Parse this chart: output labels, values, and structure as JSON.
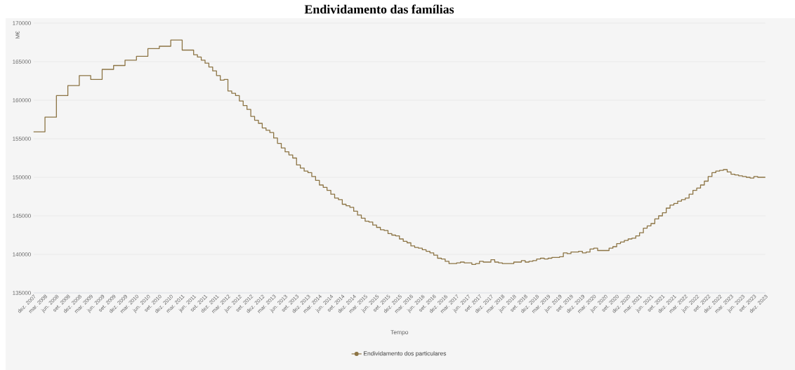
{
  "chart_data": {
    "type": "step",
    "title": "Endividamento das famílias",
    "xlabel": "Tempo",
    "ylabel": "M€",
    "x": [
      "2007-12",
      "2008-03",
      "2008-06",
      "2008-09",
      "2008-12",
      "2009-03",
      "2009-06",
      "2009-09",
      "2009-12",
      "2010-03",
      "2010-06",
      "2010-09",
      "2010-12",
      "2011-03",
      "2011-06",
      "2011-07",
      "2011-08",
      "2011-09",
      "2011-10",
      "2011-11",
      "2011-12",
      "2012-01",
      "2012-02",
      "2012-03",
      "2012-04",
      "2012-05",
      "2012-06",
      "2012-07",
      "2012-08",
      "2012-09",
      "2012-10",
      "2012-11",
      "2012-12",
      "2013-01",
      "2013-02",
      "2013-03",
      "2013-04",
      "2013-05",
      "2013-06",
      "2013-07",
      "2013-08",
      "2013-09",
      "2013-10",
      "2013-11",
      "2013-12",
      "2014-01",
      "2014-02",
      "2014-03",
      "2014-04",
      "2014-05",
      "2014-06",
      "2014-07",
      "2014-08",
      "2014-09",
      "2014-10",
      "2014-11",
      "2014-12",
      "2015-01",
      "2015-02",
      "2015-03",
      "2015-04",
      "2015-05",
      "2015-06",
      "2015-07",
      "2015-08",
      "2015-09",
      "2015-10",
      "2015-11",
      "2015-12",
      "2016-01",
      "2016-02",
      "2016-03",
      "2016-04",
      "2016-05",
      "2016-06",
      "2016-07",
      "2016-08",
      "2016-09",
      "2016-10",
      "2016-11",
      "2016-12",
      "2017-01",
      "2017-02",
      "2017-03",
      "2017-04",
      "2017-05",
      "2017-06",
      "2017-07",
      "2017-08",
      "2017-09",
      "2017-10",
      "2017-11",
      "2017-12",
      "2018-01",
      "2018-02",
      "2018-03",
      "2018-04",
      "2018-05",
      "2018-06",
      "2018-07",
      "2018-08",
      "2018-09",
      "2018-10",
      "2018-11",
      "2018-12",
      "2019-01",
      "2019-02",
      "2019-03",
      "2019-04",
      "2019-05",
      "2019-06",
      "2019-07",
      "2019-08",
      "2019-09",
      "2019-10",
      "2019-11",
      "2019-12",
      "2020-01",
      "2020-02",
      "2020-03",
      "2020-04",
      "2020-05",
      "2020-06",
      "2020-07",
      "2020-08",
      "2020-09",
      "2020-10",
      "2020-11",
      "2020-12",
      "2021-01",
      "2021-02",
      "2021-03",
      "2021-04",
      "2021-05",
      "2021-06",
      "2021-07",
      "2021-08",
      "2021-09",
      "2021-10",
      "2021-11",
      "2021-12",
      "2022-01",
      "2022-02",
      "2022-03",
      "2022-04",
      "2022-05",
      "2022-06",
      "2022-07",
      "2022-08",
      "2022-09",
      "2022-10",
      "2022-11",
      "2022-12",
      "2023-01",
      "2023-02",
      "2023-03",
      "2023-04",
      "2023-05",
      "2023-06",
      "2023-07",
      "2023-08",
      "2023-09",
      "2023-10",
      "2023-11",
      "2023-12"
    ],
    "series": [
      {
        "name": "Endividamento dos particulares",
        "color": "#8c7444",
        "values": [
          155900,
          157800,
          160600,
          161900,
          163200,
          162700,
          164000,
          164500,
          165200,
          165700,
          166700,
          167000,
          167800,
          166500,
          165900,
          165600,
          165200,
          164800,
          164300,
          163800,
          163200,
          162600,
          162700,
          161200,
          160900,
          160600,
          159900,
          159300,
          158800,
          157900,
          157400,
          157000,
          156400,
          156100,
          155800,
          155100,
          154400,
          153800,
          153300,
          152900,
          152500,
          151600,
          151200,
          150800,
          150600,
          150100,
          149600,
          149000,
          148700,
          148300,
          147800,
          147300,
          147100,
          146500,
          146300,
          146100,
          145600,
          145100,
          144700,
          144300,
          144200,
          143800,
          143500,
          143200,
          143100,
          142700,
          142500,
          142400,
          142000,
          141700,
          141500,
          141100,
          140900,
          140800,
          140600,
          140400,
          140200,
          139900,
          139500,
          139400,
          139100,
          138800,
          138800,
          138900,
          139000,
          138900,
          138900,
          138700,
          138800,
          139100,
          139000,
          139000,
          139300,
          139000,
          138900,
          138800,
          138800,
          138800,
          139000,
          139000,
          139200,
          139000,
          139100,
          139200,
          139400,
          139500,
          139400,
          139500,
          139600,
          139600,
          139700,
          140200,
          140100,
          140300,
          140300,
          140400,
          140200,
          140300,
          140700,
          140800,
          140500,
          140500,
          140500,
          140800,
          141000,
          141400,
          141600,
          141800,
          142000,
          142100,
          142400,
          142800,
          143400,
          143700,
          144000,
          144600,
          145000,
          145400,
          146000,
          146400,
          146600,
          146900,
          147100,
          147300,
          147800,
          148300,
          148600,
          149000,
          149500,
          150100,
          150600,
          150800,
          150900,
          151000,
          150700,
          150400,
          150300,
          150200,
          150100,
          150000,
          149900,
          150100,
          150000,
          150000,
          150000
        ]
      }
    ],
    "xlim": [
      "2007-12",
      "2023-12"
    ],
    "ylim": [
      135000,
      170000
    ],
    "yticks": [
      135000,
      140000,
      145000,
      150000,
      155000,
      160000,
      165000,
      170000
    ],
    "xticks": [
      {
        "value": "2007-12",
        "label": "dez. 2007"
      },
      {
        "value": "2008-03",
        "label": "mar. 2008"
      },
      {
        "value": "2008-06",
        "label": "jun. 2008"
      },
      {
        "value": "2008-09",
        "label": "set. 2008"
      },
      {
        "value": "2008-12",
        "label": "dez. 2008"
      },
      {
        "value": "2009-03",
        "label": "mar. 2009"
      },
      {
        "value": "2009-06",
        "label": "jun. 2009"
      },
      {
        "value": "2009-09",
        "label": "set. 2009"
      },
      {
        "value": "2009-12",
        "label": "dez. 2009"
      },
      {
        "value": "2010-03",
        "label": "mar. 2010"
      },
      {
        "value": "2010-06",
        "label": "jun. 2010"
      },
      {
        "value": "2010-09",
        "label": "set. 2010"
      },
      {
        "value": "2010-12",
        "label": "dez. 2010"
      },
      {
        "value": "2011-03",
        "label": "mar. 2011"
      },
      {
        "value": "2011-06",
        "label": "jun. 2011"
      },
      {
        "value": "2011-09",
        "label": "set. 2011"
      },
      {
        "value": "2011-12",
        "label": "dez. 2011"
      },
      {
        "value": "2012-03",
        "label": "mar. 2012"
      },
      {
        "value": "2012-06",
        "label": "jun. 2012"
      },
      {
        "value": "2012-09",
        "label": "set. 2012"
      },
      {
        "value": "2012-12",
        "label": "dez. 2012"
      },
      {
        "value": "2013-03",
        "label": "mar. 2013"
      },
      {
        "value": "2013-06",
        "label": "jun. 2013"
      },
      {
        "value": "2013-09",
        "label": "set. 2013"
      },
      {
        "value": "2013-12",
        "label": "dez. 2013"
      },
      {
        "value": "2014-03",
        "label": "mar. 2014"
      },
      {
        "value": "2014-06",
        "label": "jun. 2014"
      },
      {
        "value": "2014-09",
        "label": "set. 2014"
      },
      {
        "value": "2014-12",
        "label": "dez. 2014"
      },
      {
        "value": "2015-03",
        "label": "mar. 2015"
      },
      {
        "value": "2015-06",
        "label": "jun. 2015"
      },
      {
        "value": "2015-09",
        "label": "set. 2015"
      },
      {
        "value": "2015-12",
        "label": "dez. 2015"
      },
      {
        "value": "2016-03",
        "label": "mar. 2016"
      },
      {
        "value": "2016-06",
        "label": "jun. 2016"
      },
      {
        "value": "2016-09",
        "label": "set. 2016"
      },
      {
        "value": "2016-12",
        "label": "dez. 2016"
      },
      {
        "value": "2017-03",
        "label": "mar. 2017"
      },
      {
        "value": "2017-06",
        "label": "jun. 2017"
      },
      {
        "value": "2017-09",
        "label": "set. 2017"
      },
      {
        "value": "2017-12",
        "label": "dez. 2017"
      },
      {
        "value": "2018-03",
        "label": "mar. 2018"
      },
      {
        "value": "2018-06",
        "label": "jun. 2018"
      },
      {
        "value": "2018-09",
        "label": "set. 2018"
      },
      {
        "value": "2018-12",
        "label": "dez. 2018"
      },
      {
        "value": "2019-03",
        "label": "mar. 2019"
      },
      {
        "value": "2019-06",
        "label": "jun. 2019"
      },
      {
        "value": "2019-09",
        "label": "set. 2019"
      },
      {
        "value": "2019-12",
        "label": "dez. 2019"
      },
      {
        "value": "2020-03",
        "label": "mar. 2020"
      },
      {
        "value": "2020-06",
        "label": "jun. 2020"
      },
      {
        "value": "2020-09",
        "label": "set. 2020"
      },
      {
        "value": "2020-12",
        "label": "dez. 2020"
      },
      {
        "value": "2021-03",
        "label": "mar. 2021"
      },
      {
        "value": "2021-06",
        "label": "jun. 2021"
      },
      {
        "value": "2021-09",
        "label": "set. 2021"
      },
      {
        "value": "2021-12",
        "label": "dez. 2021"
      },
      {
        "value": "2022-03",
        "label": "mar. 2022"
      },
      {
        "value": "2022-06",
        "label": "jun. 2022"
      },
      {
        "value": "2022-09",
        "label": "set. 2022"
      },
      {
        "value": "2022-12",
        "label": "dez. 2022"
      },
      {
        "value": "2023-03",
        "label": "mar. 2023"
      },
      {
        "value": "2023-06",
        "label": "jun. 2023"
      },
      {
        "value": "2023-09",
        "label": "set. 2023"
      },
      {
        "value": "2023-12",
        "label": "dez. 2023"
      }
    ],
    "grid": "y",
    "legend": "bottom"
  }
}
